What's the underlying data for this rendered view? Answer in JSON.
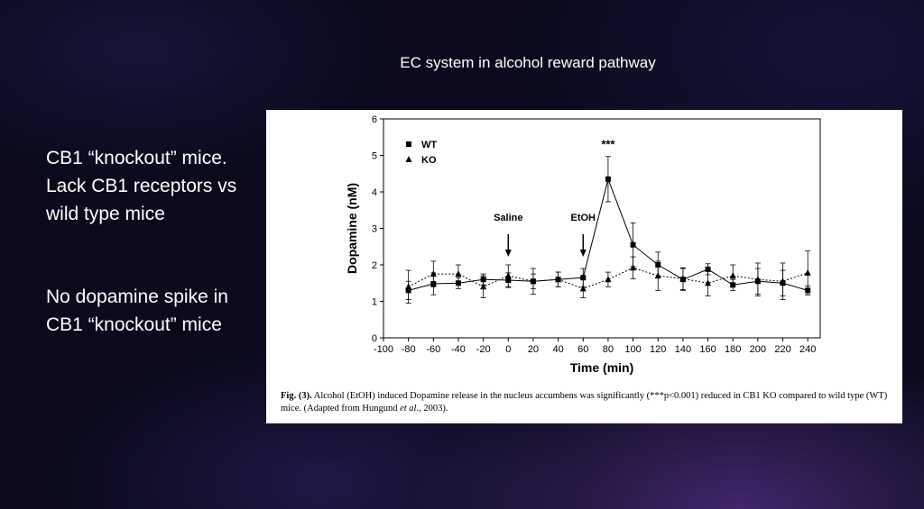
{
  "slide": {
    "title": "EC system in alcohol reward pathway",
    "side_text_1": "CB1 “knockout” mice.  Lack CB1 receptors vs wild type mice",
    "side_text_2": "No dopamine spike in CB1 “knockout” mice"
  },
  "figure": {
    "caption_label": "Fig. (3).",
    "caption_text": " Alcohol (EtOH) induced Dopamine release in the nucleus accumbens was significantly (***p<0.001) reduced in CB1 KO compared to wild type (WT) mice. (Adapted from Hungund ",
    "caption_etal": "et al",
    "caption_end": "., 2003)."
  },
  "chart_data": {
    "type": "line",
    "xlabel": "Time (min)",
    "ylabel": "Dopamine (nM)",
    "xlim": [
      -100,
      250
    ],
    "ylim": [
      0,
      6
    ],
    "xticks": [
      -100,
      -80,
      -60,
      -40,
      -20,
      0,
      20,
      40,
      60,
      80,
      100,
      120,
      140,
      160,
      180,
      200,
      220,
      240
    ],
    "yticks": [
      0,
      1,
      2,
      3,
      4,
      5,
      6
    ],
    "x": [
      -80,
      -60,
      -40,
      -20,
      0,
      20,
      40,
      60,
      80,
      100,
      120,
      140,
      160,
      180,
      200,
      220,
      240
    ],
    "series": [
      {
        "name": "WT",
        "marker": "square",
        "line": "solid",
        "values": [
          1.3,
          1.48,
          1.5,
          1.6,
          1.58,
          1.55,
          1.6,
          1.65,
          4.35,
          2.55,
          2.0,
          1.6,
          1.88,
          1.45,
          1.55,
          1.5,
          1.3
        ],
        "errors": [
          0.25,
          0.3,
          0.15,
          0.15,
          0.2,
          0.35,
          0.2,
          0.25,
          0.62,
          0.6,
          0.35,
          0.3,
          0.15,
          0.15,
          0.35,
          0.35,
          0.12
        ]
      },
      {
        "name": "KO",
        "marker": "triangle",
        "line": "dotted",
        "values": [
          1.4,
          1.75,
          1.75,
          1.4,
          1.7,
          1.55,
          1.6,
          1.35,
          1.6,
          1.92,
          1.7,
          1.62,
          1.5,
          1.7,
          1.6,
          1.55,
          1.78
        ],
        "errors": [
          0.45,
          0.35,
          0.25,
          0.3,
          0.3,
          0.2,
          0.2,
          0.25,
          0.2,
          0.3,
          0.4,
          0.3,
          0.35,
          0.3,
          0.45,
          0.5,
          0.6
        ]
      }
    ],
    "legend_position": "top-left",
    "annotations": [
      {
        "text": "Saline",
        "x": 0,
        "arrow": true
      },
      {
        "text": "EtOH",
        "x": 60,
        "arrow": true
      },
      {
        "text": "***",
        "x": 80,
        "y": 4.95
      }
    ]
  }
}
